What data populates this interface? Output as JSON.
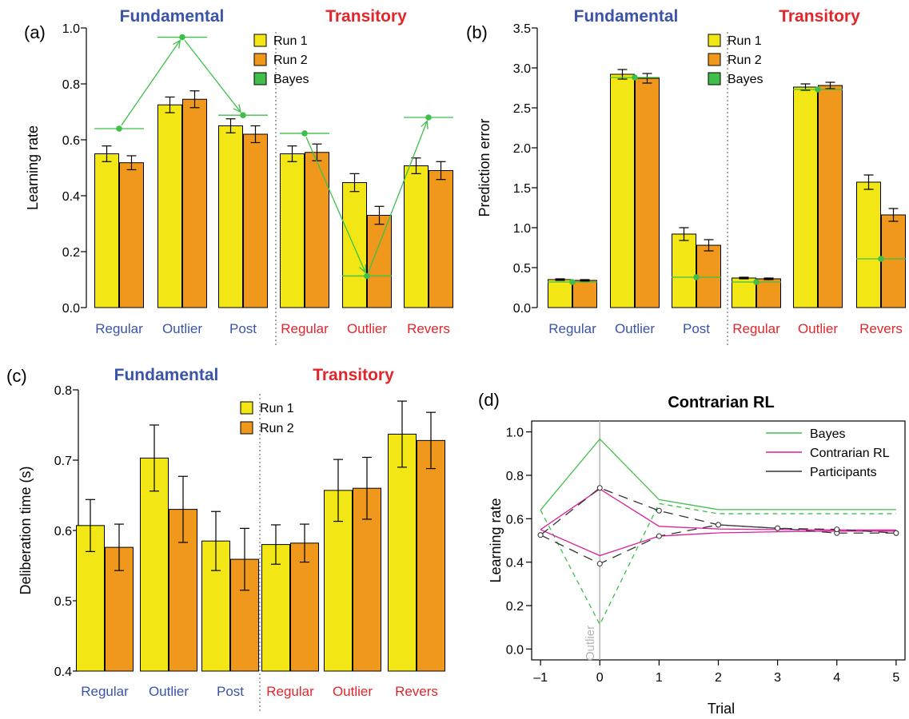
{
  "colors": {
    "run1": "#f2e614",
    "run2": "#f0981c",
    "bayes": "#3fbf4a",
    "contrarian": "#d9209a",
    "participants": "#333333",
    "fundamental": "#3a54a8",
    "transitory": "#e2262b",
    "outlier_line": "#b5b5b5"
  },
  "chart_data": [
    {
      "panel": "(a)",
      "type": "bar",
      "ylabel": "Learning rate",
      "ylim": [
        0,
        1
      ],
      "yticks": [
        "0.0",
        "0.2",
        "0.4",
        "0.6",
        "0.8",
        "1.0"
      ],
      "group_labels": [
        "Fundamental",
        "Transitory"
      ],
      "categories": [
        "Regular",
        "Outlier",
        "Post",
        "Regular",
        "Outlier",
        "Revers"
      ],
      "legend": [
        "Run 1",
        "Run 2",
        "Bayes"
      ],
      "series": [
        {
          "name": "Run 1",
          "values": [
            0.55,
            0.725,
            0.65,
            0.55,
            0.447,
            0.507
          ],
          "errors": [
            0.028,
            0.028,
            0.025,
            0.028,
            0.032,
            0.028
          ]
        },
        {
          "name": "Run 2",
          "values": [
            0.518,
            0.745,
            0.62,
            0.555,
            0.33,
            0.49
          ],
          "errors": [
            0.025,
            0.03,
            0.03,
            0.03,
            0.032,
            0.032
          ]
        },
        {
          "name": "Bayes",
          "values": [
            0.64,
            0.967,
            0.688,
            0.623,
            0.113,
            0.68
          ]
        }
      ]
    },
    {
      "panel": "(b)",
      "type": "bar",
      "ylabel": "Prediction error",
      "ylim": [
        0,
        3.5
      ],
      "yticks": [
        "0.0",
        "0.5",
        "1.0",
        "1.5",
        "2.0",
        "2.5",
        "3.0",
        "3.5"
      ],
      "group_labels": [
        "Fundamental",
        "Transitory"
      ],
      "categories": [
        "Regular",
        "Outlier",
        "Post",
        "Regular",
        "Outlier",
        "Revers"
      ],
      "legend": [
        "Run 1",
        "Run 2",
        "Bayes"
      ],
      "series": [
        {
          "name": "Run 1",
          "values": [
            0.35,
            2.92,
            0.92,
            0.37,
            2.76,
            1.57
          ],
          "errors": [
            0.01,
            0.06,
            0.08,
            0.01,
            0.04,
            0.09
          ]
        },
        {
          "name": "Run 2",
          "values": [
            0.34,
            2.87,
            0.78,
            0.36,
            2.78,
            1.16
          ],
          "errors": [
            0.01,
            0.06,
            0.07,
            0.01,
            0.04,
            0.08
          ]
        },
        {
          "name": "Bayes",
          "values": [
            0.32,
            2.88,
            0.38,
            0.32,
            2.73,
            0.61
          ]
        }
      ]
    },
    {
      "panel": "(c)",
      "type": "bar",
      "ylabel": "Deliberation time (s)",
      "ylim": [
        0.4,
        0.8
      ],
      "yticks": [
        "0.4",
        "0.5",
        "0.6",
        "0.7",
        "0.8"
      ],
      "group_labels": [
        "Fundamental",
        "Transitory"
      ],
      "categories": [
        "Regular",
        "Outlier",
        "Post",
        "Regular",
        "Outlier",
        "Revers"
      ],
      "legend": [
        "Run 1",
        "Run 2"
      ],
      "series": [
        {
          "name": "Run 1",
          "values": [
            0.607,
            0.703,
            0.585,
            0.58,
            0.657,
            0.737
          ],
          "errors": [
            0.037,
            0.047,
            0.042,
            0.028,
            0.044,
            0.047
          ]
        },
        {
          "name": "Run 2",
          "values": [
            0.576,
            0.63,
            0.559,
            0.582,
            0.66,
            0.728
          ],
          "errors": [
            0.033,
            0.047,
            0.044,
            0.027,
            0.044,
            0.04
          ]
        }
      ]
    },
    {
      "panel": "(d)",
      "type": "line",
      "title": "Contrarian RL",
      "xlabel": "Trial",
      "ylabel": "Learning rate",
      "x": [
        -1,
        0,
        1,
        2,
        3,
        4,
        5
      ],
      "xticks": [
        "–1",
        "0",
        "1",
        "2",
        "3",
        "4",
        "5"
      ],
      "xlim": [
        -1.15,
        5.15
      ],
      "ylim": [
        -0.05,
        1.05
      ],
      "yticks": [
        "0.0",
        "0.2",
        "0.4",
        "0.6",
        "0.8",
        "1.0"
      ],
      "annotation": "Outlier",
      "legend": [
        "Bayes",
        "Contrarian RL",
        "Participants"
      ],
      "series": [
        {
          "name": "Bayes",
          "line": "solid",
          "values": [
            0.64,
            0.967,
            0.688,
            0.642,
            0.642,
            0.642,
            0.642
          ]
        },
        {
          "name": "Bayes",
          "line": "dashed",
          "values": [
            0.64,
            0.113,
            0.67,
            0.623,
            0.623,
            0.623,
            0.623
          ]
        },
        {
          "name": "Contrarian RL",
          "line": "solid",
          "values": [
            0.55,
            0.737,
            0.565,
            0.553,
            0.55,
            0.548,
            0.548
          ]
        },
        {
          "name": "Contrarian RL",
          "line": "solid",
          "values": [
            0.55,
            0.43,
            0.52,
            0.535,
            0.54,
            0.543,
            0.543
          ]
        },
        {
          "name": "Participants",
          "line": "dashed",
          "points": true,
          "values": [
            0.525,
            0.742,
            0.637,
            0.572,
            0.556,
            0.534,
            0.534
          ]
        },
        {
          "name": "Participants",
          "line": "dashed",
          "points": true,
          "values": [
            0.525,
            0.393,
            0.52,
            0.572,
            0.556,
            0.551,
            0.534
          ]
        }
      ]
    }
  ]
}
